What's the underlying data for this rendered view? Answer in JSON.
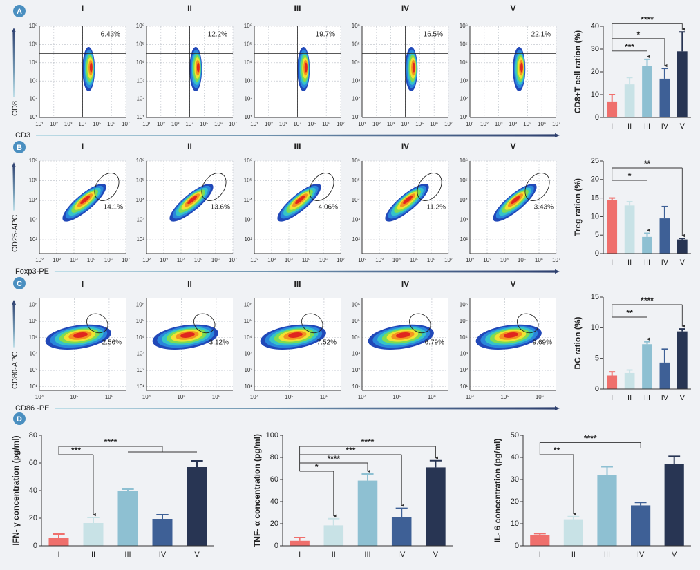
{
  "chart_data": [
    {
      "type": "density",
      "panel": "A",
      "titles": [
        "I",
        "II",
        "III",
        "IV",
        "V"
      ],
      "values": [
        6.43,
        12.2,
        19.7,
        16.5,
        22.1
      ],
      "value_labels": [
        "6.43%",
        "12.2%",
        "19.7%",
        "16.5%",
        "22.1%"
      ],
      "xlabel": "CD3",
      "ylabel": "CD8",
      "scale": "log",
      "grid": true,
      "xlim": [
        10,
        10000000
      ],
      "ylim": [
        10,
        1000000
      ],
      "xticks": [
        {
          "value": 10,
          "label": "10¹"
        },
        {
          "value": 100,
          "label": "10²"
        },
        {
          "value": 1000,
          "label": "10³"
        },
        {
          "value": 10000,
          "label": "10⁴"
        },
        {
          "value": 100000,
          "label": "10⁵"
        },
        {
          "value": 1000000,
          "label": "10⁶"
        },
        {
          "value": 10000000,
          "label": "10⁷"
        }
      ],
      "yticks": [
        {
          "value": 10,
          "label": "10¹"
        },
        {
          "value": 100,
          "label": "10²"
        },
        {
          "value": 1000,
          "label": "10³"
        },
        {
          "value": 10000,
          "label": "10⁴"
        },
        {
          "value": 100000,
          "label": "10⁵"
        },
        {
          "value": 1000000,
          "label": "10⁶"
        }
      ]
    },
    {
      "type": "bar",
      "ylabel": "CD8+T cell ration (%)",
      "categories": [
        "I",
        "II",
        "III",
        "IV",
        "V"
      ],
      "values": [
        7,
        14.5,
        22.5,
        17,
        29
      ],
      "errors": [
        3,
        3,
        3,
        4.5,
        8.5
      ],
      "colors": [
        "#ef6f6c",
        "#c8e2e6",
        "#8ec0d2",
        "#3e6096",
        "#283553"
      ],
      "ylim": [
        0,
        40
      ],
      "yticks": [
        0,
        10,
        20,
        30,
        40
      ],
      "significance": [
        {
          "groups": [
            "I",
            "V"
          ],
          "label": "****"
        },
        {
          "groups": [
            "I",
            "IV"
          ],
          "label": "*"
        },
        {
          "groups": [
            "I",
            "III"
          ],
          "label": "***"
        }
      ]
    },
    {
      "type": "density",
      "panel": "B",
      "titles": [
        "I",
        "II",
        "III",
        "IV",
        "V"
      ],
      "values": [
        14.1,
        13.6,
        4.06,
        11.2,
        3.43
      ],
      "value_labels": [
        "14.1%",
        "13.6%",
        "4.06%",
        "11.2%",
        "3.43%"
      ],
      "xlabel": "Foxp3-PE",
      "ylabel": "CD25-APC",
      "scale": "log",
      "grid": true,
      "xlim": [
        100,
        10000000
      ],
      "ylim": [
        20,
        1000000
      ],
      "xticks": [
        {
          "value": 100,
          "label": "10²"
        },
        {
          "value": 1000,
          "label": "10³"
        },
        {
          "value": 10000,
          "label": "10⁴"
        },
        {
          "value": 100000,
          "label": "10⁵"
        },
        {
          "value": 1000000,
          "label": "10⁶"
        },
        {
          "value": 10000000,
          "label": "10⁷"
        }
      ],
      "yticks": [
        {
          "value": 100,
          "label": "10²"
        },
        {
          "value": 1000,
          "label": "10³"
        },
        {
          "value": 10000,
          "label": "10⁴"
        },
        {
          "value": 100000,
          "label": "10⁵"
        },
        {
          "value": 1000000,
          "label": "10⁶"
        }
      ]
    },
    {
      "type": "bar",
      "ylabel": "Treg ration (%)",
      "categories": [
        "I",
        "II",
        "III",
        "IV",
        "V"
      ],
      "values": [
        14.5,
        13,
        4.5,
        9.5,
        3.8
      ],
      "errors": [
        0.5,
        1,
        1,
        3.2,
        0.3
      ],
      "colors": [
        "#ef6f6c",
        "#c8e2e6",
        "#8ec0d2",
        "#3e6096",
        "#283553"
      ],
      "ylim": [
        0,
        25
      ],
      "yticks": [
        0,
        5,
        10,
        15,
        20,
        25
      ],
      "significance": [
        {
          "groups": [
            "I",
            "V"
          ],
          "label": "**"
        },
        {
          "groups": [
            "I",
            "III"
          ],
          "label": "*"
        }
      ]
    },
    {
      "type": "density",
      "panel": "C",
      "titles": [
        "I",
        "II",
        "III",
        "IV",
        "V"
      ],
      "values": [
        2.56,
        3.12,
        7.52,
        6.79,
        9.69
      ],
      "value_labels": [
        "2.56%",
        "3.12%",
        "7.52%",
        "6.79%",
        "9.69%"
      ],
      "xlabel": "CD86 -PE",
      "ylabel": "CD80-APC",
      "scale": "log",
      "grid": true,
      "xlim": [
        10000,
        3000000
      ],
      "ylim": [
        6,
        2500000
      ],
      "xticks": [
        {
          "value": 10000,
          "label": "10⁴"
        },
        {
          "value": 100000,
          "label": "10⁵"
        },
        {
          "value": 1000000,
          "label": "10⁶"
        }
      ],
      "yticks": [
        {
          "value": 10,
          "label": "10¹"
        },
        {
          "value": 100,
          "label": "10²"
        },
        {
          "value": 1000,
          "label": "10³"
        },
        {
          "value": 10000,
          "label": "10⁴"
        },
        {
          "value": 100000,
          "label": "10⁵"
        },
        {
          "value": 1000000,
          "label": "10⁶"
        }
      ]
    },
    {
      "type": "bar",
      "ylabel": "DC ration (%)",
      "categories": [
        "I",
        "II",
        "III",
        "IV",
        "V"
      ],
      "values": [
        2.2,
        2.6,
        7.3,
        4.3,
        9.4
      ],
      "errors": [
        0.6,
        0.5,
        0.4,
        2.2,
        0.4
      ],
      "colors": [
        "#ef6f6c",
        "#c8e2e6",
        "#8ec0d2",
        "#3e6096",
        "#283553"
      ],
      "ylim": [
        0,
        15
      ],
      "yticks": [
        0,
        5,
        10,
        15
      ],
      "significance": [
        {
          "groups": [
            "I",
            "V"
          ],
          "label": "****"
        },
        {
          "groups": [
            "I",
            "III"
          ],
          "label": "**"
        }
      ]
    },
    {
      "type": "bar",
      "panel": "D",
      "ylabel": "IFN- γ concentration (pg/ml)",
      "categories": [
        "I",
        "II",
        "III",
        "IV",
        "V"
      ],
      "values": [
        5.5,
        16.5,
        39.5,
        19.5,
        57
      ],
      "errors": [
        3,
        4,
        1.5,
        3,
        4.5
      ],
      "colors": [
        "#ef6f6c",
        "#c8e2e6",
        "#8ec0d2",
        "#3e6096",
        "#283553"
      ],
      "ylim": [
        0,
        80
      ],
      "yticks": [
        0,
        20,
        40,
        60,
        80
      ],
      "significance": [
        {
          "groups": [
            "I",
            [
              "III",
              "V"
            ]
          ],
          "label": "****"
        },
        {
          "groups": [
            "I",
            "II"
          ],
          "label": "***"
        }
      ]
    },
    {
      "type": "bar",
      "ylabel": "TNF- α concentration (pg/ml)",
      "categories": [
        "I",
        "II",
        "III",
        "IV",
        "V"
      ],
      "values": [
        4.5,
        18.5,
        59,
        26,
        71
      ],
      "errors": [
        3,
        6,
        6,
        8,
        6
      ],
      "colors": [
        "#ef6f6c",
        "#c8e2e6",
        "#8ec0d2",
        "#3e6096",
        "#283553"
      ],
      "ylim": [
        0,
        100
      ],
      "yticks": [
        0,
        20,
        40,
        60,
        80,
        100
      ],
      "significance": [
        {
          "groups": [
            "I",
            "V"
          ],
          "label": "****"
        },
        {
          "groups": [
            "I",
            "IV"
          ],
          "label": "***"
        },
        {
          "groups": [
            "I",
            "III"
          ],
          "label": "****"
        },
        {
          "groups": [
            "I",
            "II"
          ],
          "label": "*"
        }
      ]
    },
    {
      "type": "bar",
      "ylabel": "IL- 6 concentration (pg/ml)",
      "categories": [
        "I",
        "II",
        "III",
        "IV",
        "V"
      ],
      "values": [
        5,
        12,
        32,
        18.3,
        37
      ],
      "errors": [
        0.5,
        1.2,
        3.8,
        1.3,
        3.5
      ],
      "colors": [
        "#ef6f6c",
        "#c8e2e6",
        "#8ec0d2",
        "#3e6096",
        "#283553"
      ],
      "ylim": [
        0,
        50
      ],
      "yticks": [
        0,
        10,
        20,
        30,
        40,
        50
      ],
      "significance": [
        {
          "groups": [
            "I",
            [
              "III",
              "V"
            ]
          ],
          "label": "****"
        },
        {
          "groups": [
            "I",
            "II"
          ],
          "label": "**"
        }
      ]
    }
  ]
}
